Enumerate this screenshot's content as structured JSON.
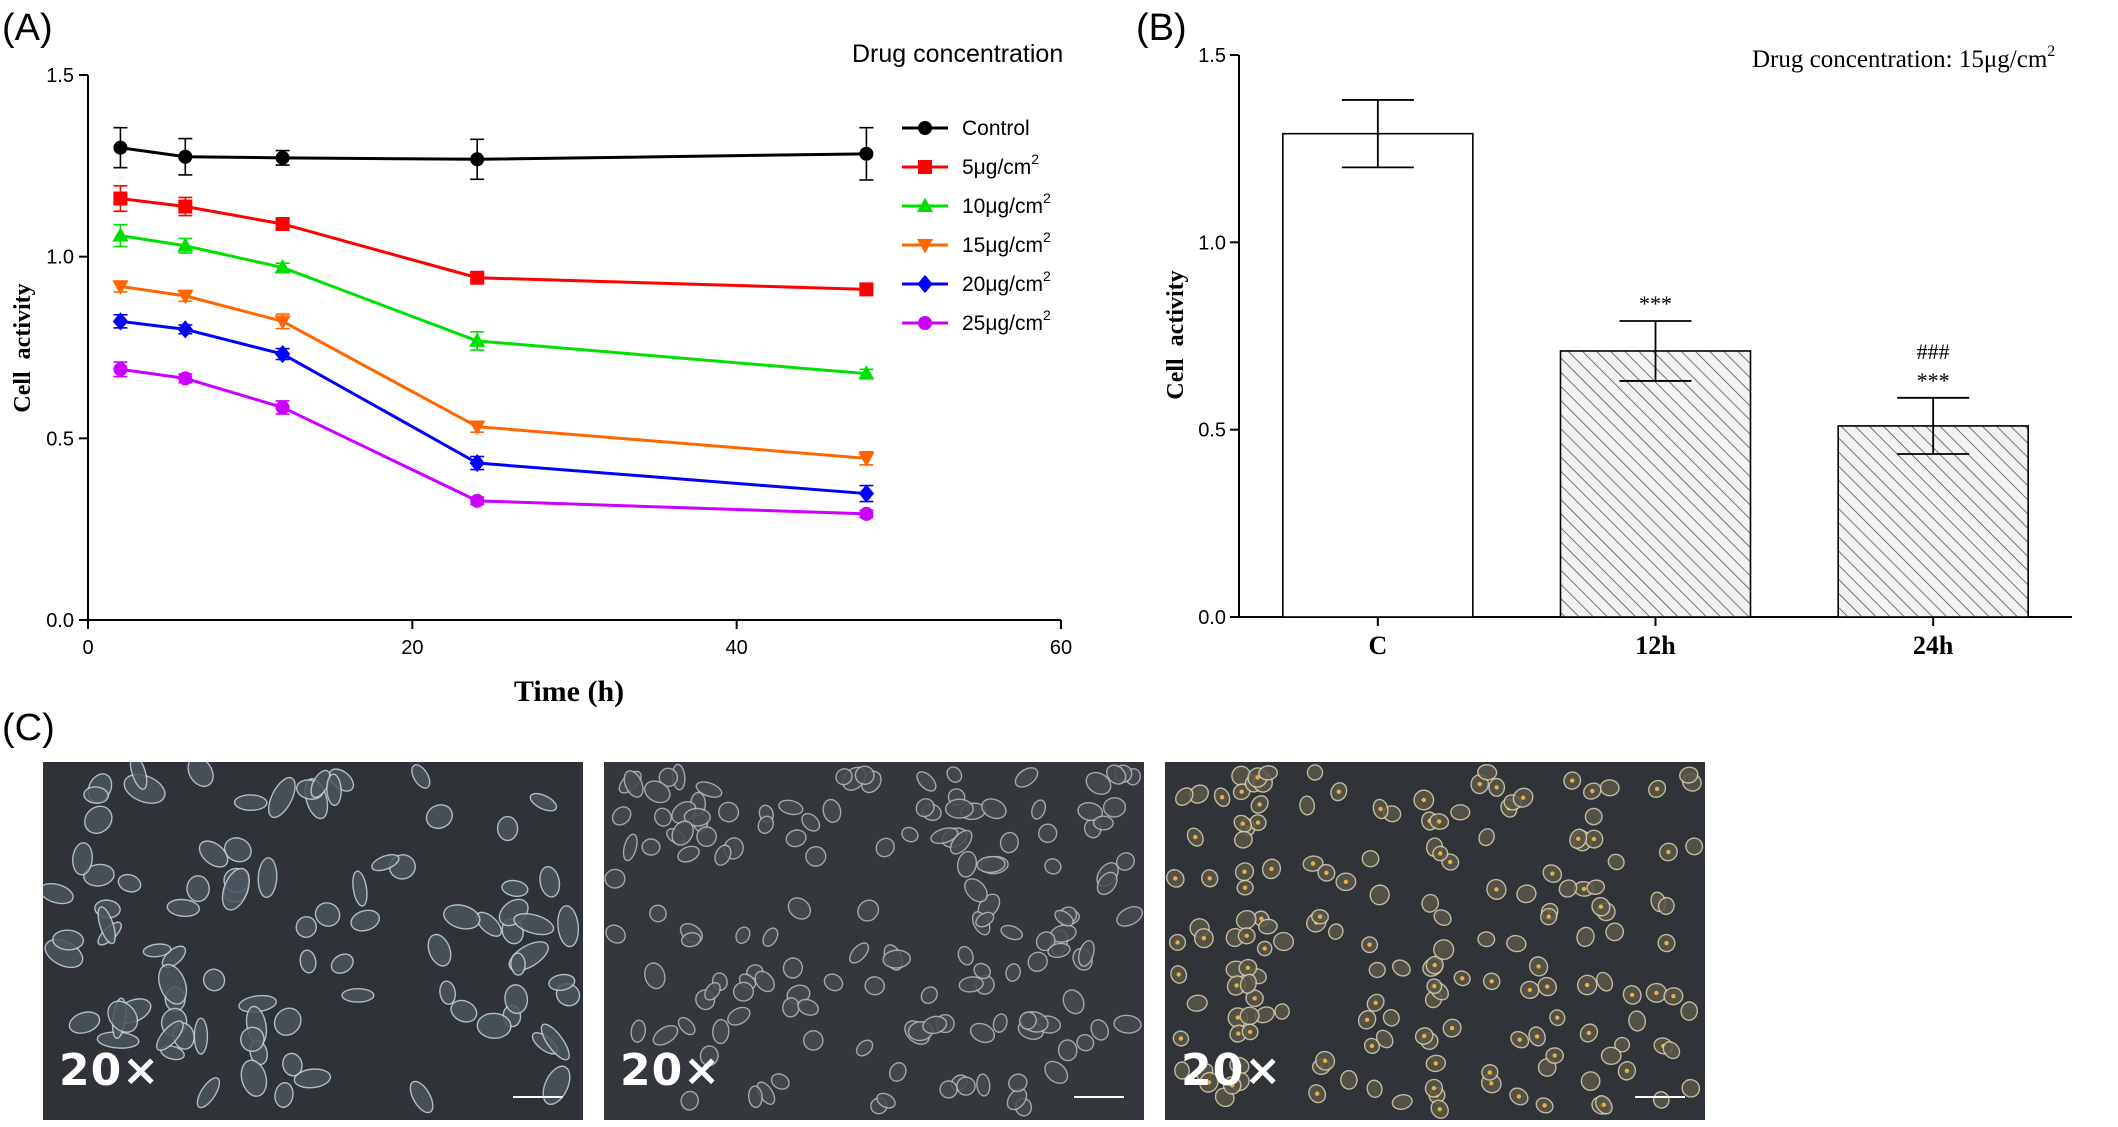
{
  "panels": {
    "a": {
      "label": "(A)"
    },
    "b": {
      "label": "(B)"
    },
    "c": {
      "label": "(C)"
    }
  },
  "chart_data": [
    {
      "type": "line",
      "legend_title": "Drug concentration",
      "legend_placement": "top-right",
      "xlabel": "Time (h)",
      "ylabel": "Cell  activity",
      "xlim": [
        0,
        60
      ],
      "ylim": [
        0,
        1.5
      ],
      "x_ticks": [
        "0",
        "20",
        "40",
        "60"
      ],
      "y_ticks": [
        "0.0",
        "0.5",
        "1.0",
        "1.5"
      ],
      "grid": false,
      "x": [
        2,
        6,
        12,
        24,
        48
      ],
      "series": [
        {
          "name": "Control",
          "marker": "circle",
          "color": "#000000",
          "values": [
            1.3,
            1.275,
            1.272,
            1.268,
            1.283
          ],
          "errors": [
            0.055,
            0.05,
            0.02,
            0.055,
            0.072
          ]
        },
        {
          "name": "5μg/cm",
          "sup": "2",
          "marker": "square",
          "color": "#ff0000",
          "values": [
            1.16,
            1.138,
            1.09,
            0.942,
            0.91
          ],
          "errors": [
            0.035,
            0.025,
            0.012,
            0.012,
            0.012
          ]
        },
        {
          "name": "10μg/cm",
          "sup": "2",
          "marker": "triangle-up",
          "color": "#00e000",
          "values": [
            1.058,
            1.03,
            0.97,
            0.768,
            0.678
          ],
          "errors": [
            0.03,
            0.02,
            0.012,
            0.025,
            0.012
          ]
        },
        {
          "name": "15μg/cm",
          "sup": "2",
          "marker": "triangle-down",
          "color": "#ff6600",
          "values": [
            0.918,
            0.892,
            0.822,
            0.532,
            0.445
          ],
          "errors": [
            0.015,
            0.015,
            0.02,
            0.015,
            0.018
          ]
        },
        {
          "name": "20μg/cm",
          "sup": "2",
          "marker": "diamond",
          "color": "#0000ff",
          "values": [
            0.822,
            0.8,
            0.732,
            0.432,
            0.348
          ],
          "errors": [
            0.018,
            0.012,
            0.015,
            0.018,
            0.022
          ]
        },
        {
          "name": "25μg/cm",
          "sup": "2",
          "marker": "circle",
          "color": "#cc00ff",
          "values": [
            0.69,
            0.665,
            0.585,
            0.328,
            0.292
          ],
          "errors": [
            0.02,
            0.012,
            0.018,
            0.01,
            0.01
          ]
        }
      ]
    },
    {
      "type": "bar",
      "title": "Drug concentration: 15μg/cm",
      "title_sup": "2",
      "ylabel": "Cell  activity",
      "ylim": [
        0,
        1.5
      ],
      "y_ticks": [
        "0.0",
        "0.5",
        "1.0",
        "1.5"
      ],
      "grid": false,
      "categories": [
        "C",
        "12h",
        "24h"
      ],
      "values": [
        1.29,
        0.71,
        0.51
      ],
      "errors": [
        0.09,
        0.08,
        0.075
      ],
      "fills": [
        "open",
        "hatched",
        "hatched"
      ],
      "annotations": [
        [],
        [
          "***"
        ],
        [
          "###",
          "***"
        ]
      ]
    }
  ],
  "micrographs": [
    {
      "magnification": "20×"
    },
    {
      "magnification": "20×"
    },
    {
      "magnification": "20×"
    }
  ]
}
